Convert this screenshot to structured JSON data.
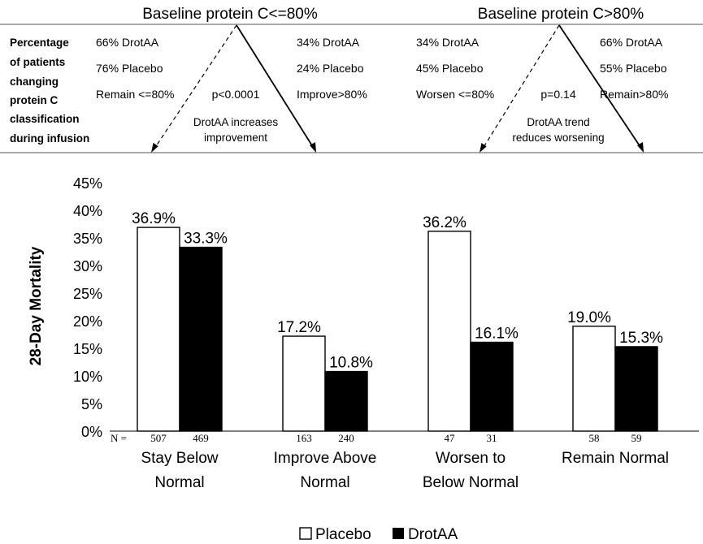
{
  "header": {
    "left_title": "Baseline protein C<=80%",
    "right_title": "Baseline protein C>80%",
    "row_label_lines": [
      "Percentage",
      "of patients",
      "changing",
      "protein C",
      "classification",
      "during infusion"
    ],
    "left": {
      "branch_a": [
        "66% DrotAA",
        "76% Placebo",
        "Remain <=80%"
      ],
      "branch_b": [
        "34% DrotAA",
        "24% Placebo",
        "Improve>80%"
      ],
      "p_value": "p<0.0001",
      "note_lines": [
        "DrotAA increases",
        "improvement"
      ]
    },
    "right": {
      "branch_a": [
        "34% DrotAA",
        "45% Placebo",
        "Worsen <=80%"
      ],
      "branch_b": [
        "66% DrotAA",
        "55% Placebo",
        "Remain>80%"
      ],
      "p_value": "p=0.14",
      "note_lines": [
        "DrotAA trend",
        "reduces worsening"
      ]
    }
  },
  "chart_data": {
    "type": "bar",
    "ylabel": "28-Day Mortality",
    "ylim": [
      0,
      45
    ],
    "yticks": [
      "0%",
      "5%",
      "10%",
      "15%",
      "20%",
      "25%",
      "30%",
      "35%",
      "40%",
      "45%"
    ],
    "categories": [
      [
        "Stay Below",
        "Normal"
      ],
      [
        "Improve Above",
        "Normal"
      ],
      [
        "Worsen to",
        "Below Normal"
      ],
      [
        "Remain Normal"
      ]
    ],
    "n_prefix": "N =",
    "series": [
      {
        "name": "Placebo",
        "color": "#ffffff",
        "values": [
          36.9,
          17.2,
          36.2,
          19.0
        ],
        "labels": [
          "36.9%",
          "17.2%",
          "36.2%",
          "19.0%"
        ],
        "n": [
          "507",
          "163",
          "47",
          "58"
        ]
      },
      {
        "name": "DrotAA",
        "color": "#000000",
        "values": [
          33.3,
          10.8,
          16.1,
          15.3
        ],
        "labels": [
          "33.3%",
          "10.8%",
          "16.1%",
          "15.3%"
        ],
        "n": [
          "469",
          "240",
          "31",
          "59"
        ]
      }
    ],
    "legend": {
      "position": "bottom-center",
      "items": [
        "Placebo",
        "DrotAA"
      ]
    }
  }
}
